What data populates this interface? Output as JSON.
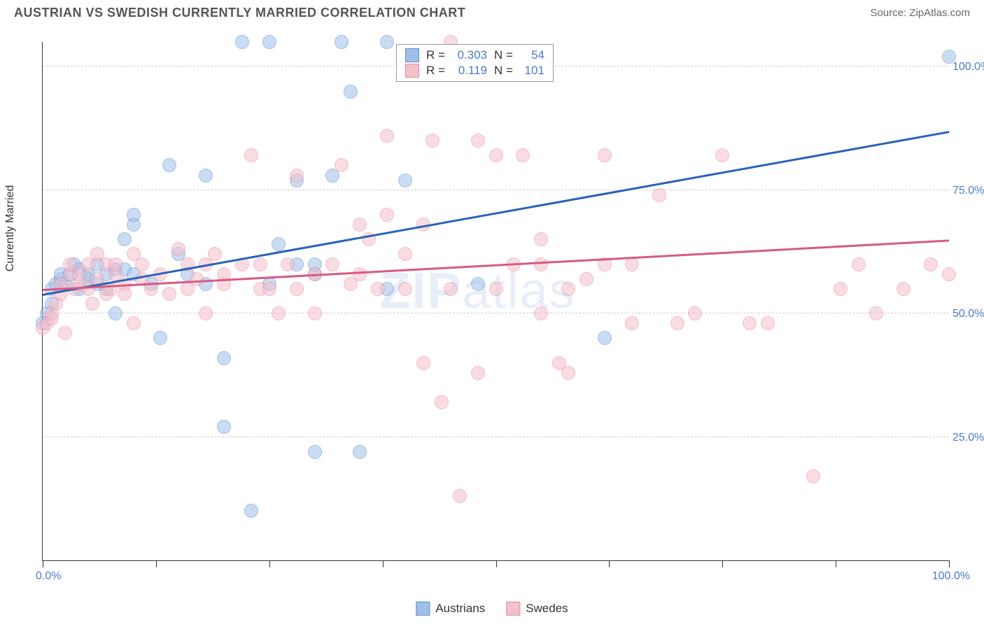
{
  "header": {
    "title": "AUSTRIAN VS SWEDISH CURRENTLY MARRIED CORRELATION CHART",
    "source": "Source: ZipAtlas.com"
  },
  "chart": {
    "type": "scatter",
    "ylabel": "Currently Married",
    "watermark": "ZIPatlas",
    "xlim": [
      0,
      100
    ],
    "ylim": [
      0,
      105
    ],
    "xtick_positions": [
      0,
      12.5,
      25,
      37.5,
      50,
      62.5,
      75,
      87.5,
      100
    ],
    "xlabel_min": "0.0%",
    "xlabel_max": "100.0%",
    "yticks": [
      {
        "value": 25,
        "label": "25.0%"
      },
      {
        "value": 50,
        "label": "50.0%"
      },
      {
        "value": 75,
        "label": "75.0%"
      },
      {
        "value": 100,
        "label": "100.0%"
      }
    ],
    "background_color": "#ffffff",
    "grid_color": "#cccccc",
    "point_radius": 10,
    "point_opacity": 0.55,
    "series": [
      {
        "name": "Austrians",
        "fill_color": "#9fc0e8",
        "stroke_color": "#5a8fd4",
        "stats": {
          "R_label": "R =",
          "R": "0.303",
          "N_label": "N =",
          "N": "54"
        },
        "regression": {
          "x1": 0,
          "y1": 54,
          "x2": 100,
          "y2": 87,
          "color": "#2a62b8",
          "width": 2.5
        },
        "points": [
          [
            0,
            48
          ],
          [
            0.5,
            50
          ],
          [
            1,
            52
          ],
          [
            1,
            55
          ],
          [
            1.5,
            56
          ],
          [
            2,
            57
          ],
          [
            2,
            58
          ],
          [
            2.5,
            56
          ],
          [
            3,
            58
          ],
          [
            3.5,
            60
          ],
          [
            4,
            59
          ],
          [
            4,
            55
          ],
          [
            5,
            57
          ],
          [
            5,
            58
          ],
          [
            6,
            56
          ],
          [
            6,
            60
          ],
          [
            7,
            58
          ],
          [
            7,
            55
          ],
          [
            8,
            59
          ],
          [
            8,
            50
          ],
          [
            9,
            65
          ],
          [
            9,
            59
          ],
          [
            10,
            58
          ],
          [
            10,
            68
          ],
          [
            10,
            70
          ],
          [
            12,
            56
          ],
          [
            13,
            45
          ],
          [
            14,
            80
          ],
          [
            15,
            62
          ],
          [
            16,
            58
          ],
          [
            18,
            78
          ],
          [
            18,
            56
          ],
          [
            20,
            41
          ],
          [
            22,
            105
          ],
          [
            20,
            27
          ],
          [
            23,
            10
          ],
          [
            25,
            105
          ],
          [
            25,
            56
          ],
          [
            26,
            64
          ],
          [
            28,
            60
          ],
          [
            28,
            77
          ],
          [
            30,
            22
          ],
          [
            30,
            58
          ],
          [
            30,
            60
          ],
          [
            32,
            78
          ],
          [
            33,
            105
          ],
          [
            34,
            95
          ],
          [
            35,
            22
          ],
          [
            38,
            105
          ],
          [
            38,
            55
          ],
          [
            40,
            77
          ],
          [
            48,
            56
          ],
          [
            62,
            45
          ],
          [
            100,
            102
          ]
        ]
      },
      {
        "name": "Swedes",
        "fill_color": "#f4c0cc",
        "stroke_color": "#e68aa4",
        "stats": {
          "R_label": "R =",
          "R": "0.119",
          "N_label": "N =",
          "N": "101"
        },
        "regression": {
          "x1": 0,
          "y1": 55,
          "x2": 100,
          "y2": 65,
          "color": "#d85a82",
          "width": 2.5
        },
        "points": [
          [
            0,
            47
          ],
          [
            0.5,
            48
          ],
          [
            1,
            49
          ],
          [
            1,
            50
          ],
          [
            1.5,
            52
          ],
          [
            2,
            54
          ],
          [
            2,
            56
          ],
          [
            2.5,
            46
          ],
          [
            3,
            58
          ],
          [
            3,
            60
          ],
          [
            3.5,
            55
          ],
          [
            4,
            56
          ],
          [
            4,
            58
          ],
          [
            5,
            60
          ],
          [
            5,
            55
          ],
          [
            5.5,
            52
          ],
          [
            6,
            62
          ],
          [
            6,
            57
          ],
          [
            7,
            60
          ],
          [
            7,
            54
          ],
          [
            7.5,
            55
          ],
          [
            8,
            58
          ],
          [
            8,
            60
          ],
          [
            9,
            56
          ],
          [
            9,
            54
          ],
          [
            10,
            62
          ],
          [
            10,
            48
          ],
          [
            11,
            57
          ],
          [
            11,
            60
          ],
          [
            12,
            55
          ],
          [
            13,
            58
          ],
          [
            14,
            54
          ],
          [
            15,
            63
          ],
          [
            16,
            55
          ],
          [
            16,
            60
          ],
          [
            17,
            57
          ],
          [
            18,
            60
          ],
          [
            18,
            50
          ],
          [
            19,
            62
          ],
          [
            20,
            56
          ],
          [
            20,
            58
          ],
          [
            22,
            60
          ],
          [
            23,
            82
          ],
          [
            24,
            55
          ],
          [
            24,
            60
          ],
          [
            25,
            55
          ],
          [
            26,
            50
          ],
          [
            27,
            60
          ],
          [
            28,
            55
          ],
          [
            28,
            78
          ],
          [
            30,
            58
          ],
          [
            30,
            50
          ],
          [
            32,
            60
          ],
          [
            33,
            80
          ],
          [
            34,
            56
          ],
          [
            35,
            68
          ],
          [
            35,
            58
          ],
          [
            36,
            65
          ],
          [
            37,
            55
          ],
          [
            38,
            86
          ],
          [
            38,
            70
          ],
          [
            40,
            55
          ],
          [
            40,
            62
          ],
          [
            42,
            68
          ],
          [
            42,
            40
          ],
          [
            43,
            85
          ],
          [
            44,
            32
          ],
          [
            45,
            55
          ],
          [
            45,
            105
          ],
          [
            46,
            13
          ],
          [
            48,
            85
          ],
          [
            48,
            38
          ],
          [
            50,
            55
          ],
          [
            50,
            82
          ],
          [
            52,
            60
          ],
          [
            53,
            82
          ],
          [
            55,
            65
          ],
          [
            55,
            60
          ],
          [
            55,
            50
          ],
          [
            57,
            40
          ],
          [
            58,
            55
          ],
          [
            58,
            38
          ],
          [
            60,
            57
          ],
          [
            62,
            60
          ],
          [
            62,
            82
          ],
          [
            65,
            60
          ],
          [
            65,
            48
          ],
          [
            68,
            74
          ],
          [
            70,
            48
          ],
          [
            72,
            50
          ],
          [
            75,
            82
          ],
          [
            78,
            48
          ],
          [
            80,
            48
          ],
          [
            85,
            17
          ],
          [
            88,
            55
          ],
          [
            90,
            60
          ],
          [
            92,
            50
          ],
          [
            95,
            55
          ],
          [
            98,
            60
          ],
          [
            100,
            58
          ]
        ]
      }
    ],
    "bottom_legend": [
      {
        "label": "Austrians",
        "fill": "#9fc0e8",
        "stroke": "#5a8fd4"
      },
      {
        "label": "Swedes",
        "fill": "#f4c0cc",
        "stroke": "#e68aa4"
      }
    ]
  }
}
